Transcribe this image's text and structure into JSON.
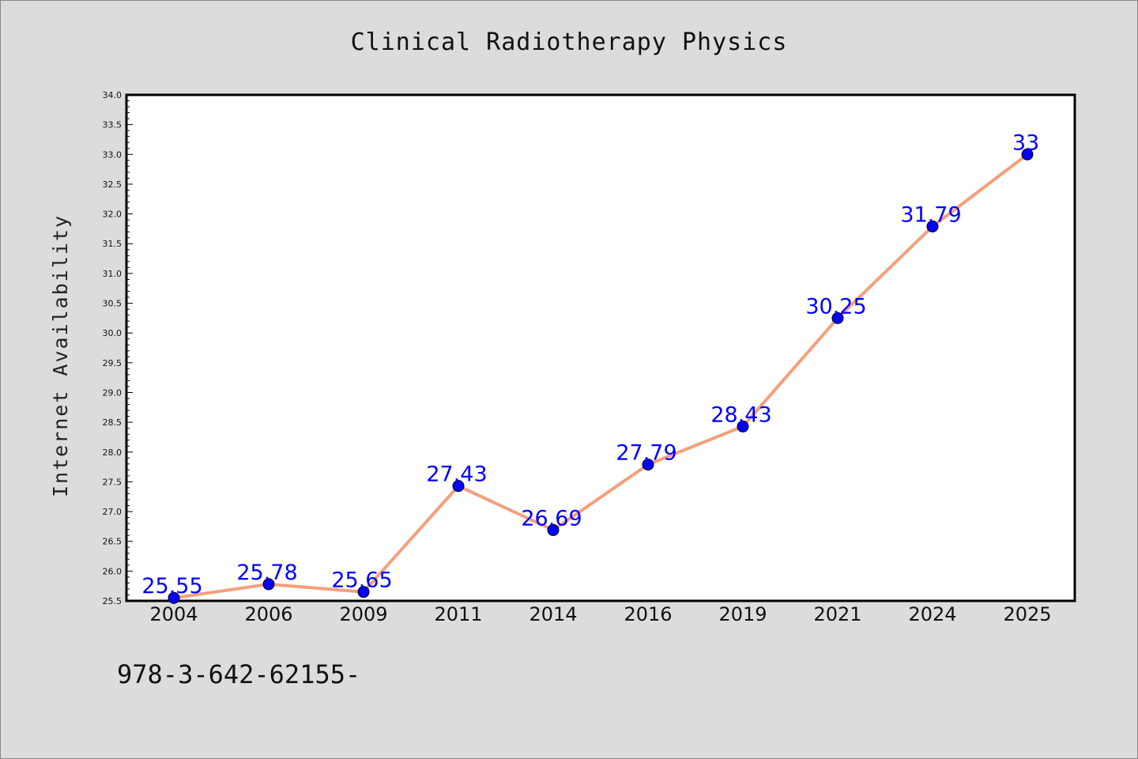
{
  "chart_data": {
    "type": "line",
    "title": "Clinical Radiotherapy Physics",
    "xlabel": "",
    "ylabel": "Internet Availability",
    "categories": [
      "2004",
      "2006",
      "2009",
      "2011",
      "2014",
      "2016",
      "2019",
      "2021",
      "2024",
      "2025"
    ],
    "values": [
      25.55,
      25.78,
      25.65,
      27.43,
      26.69,
      27.79,
      28.43,
      30.25,
      31.79,
      33
    ],
    "data_labels": [
      "25.55",
      "25.78",
      "25.65",
      "27.43",
      "26.69",
      "27.79",
      "28.43",
      "30.25",
      "31.79",
      "33"
    ],
    "ylim": [
      25.5,
      34.0
    ],
    "yticks": [
      "25.5",
      "26.0",
      "26.5",
      "27.0",
      "27.5",
      "28.0",
      "28.5",
      "29.0",
      "29.5",
      "30.0",
      "30.5",
      "31.0",
      "31.5",
      "32.0",
      "32.5",
      "33.0",
      "33.5",
      "34.0"
    ],
    "grid": false,
    "legend": "none",
    "colors": {
      "line": "#f4a07c",
      "marker": "#0000ff",
      "data_label": "#0000ff",
      "background": "#dcdcdc",
      "plot_background": "#ffffff"
    }
  },
  "footer_text": "978-3-642-62155-"
}
